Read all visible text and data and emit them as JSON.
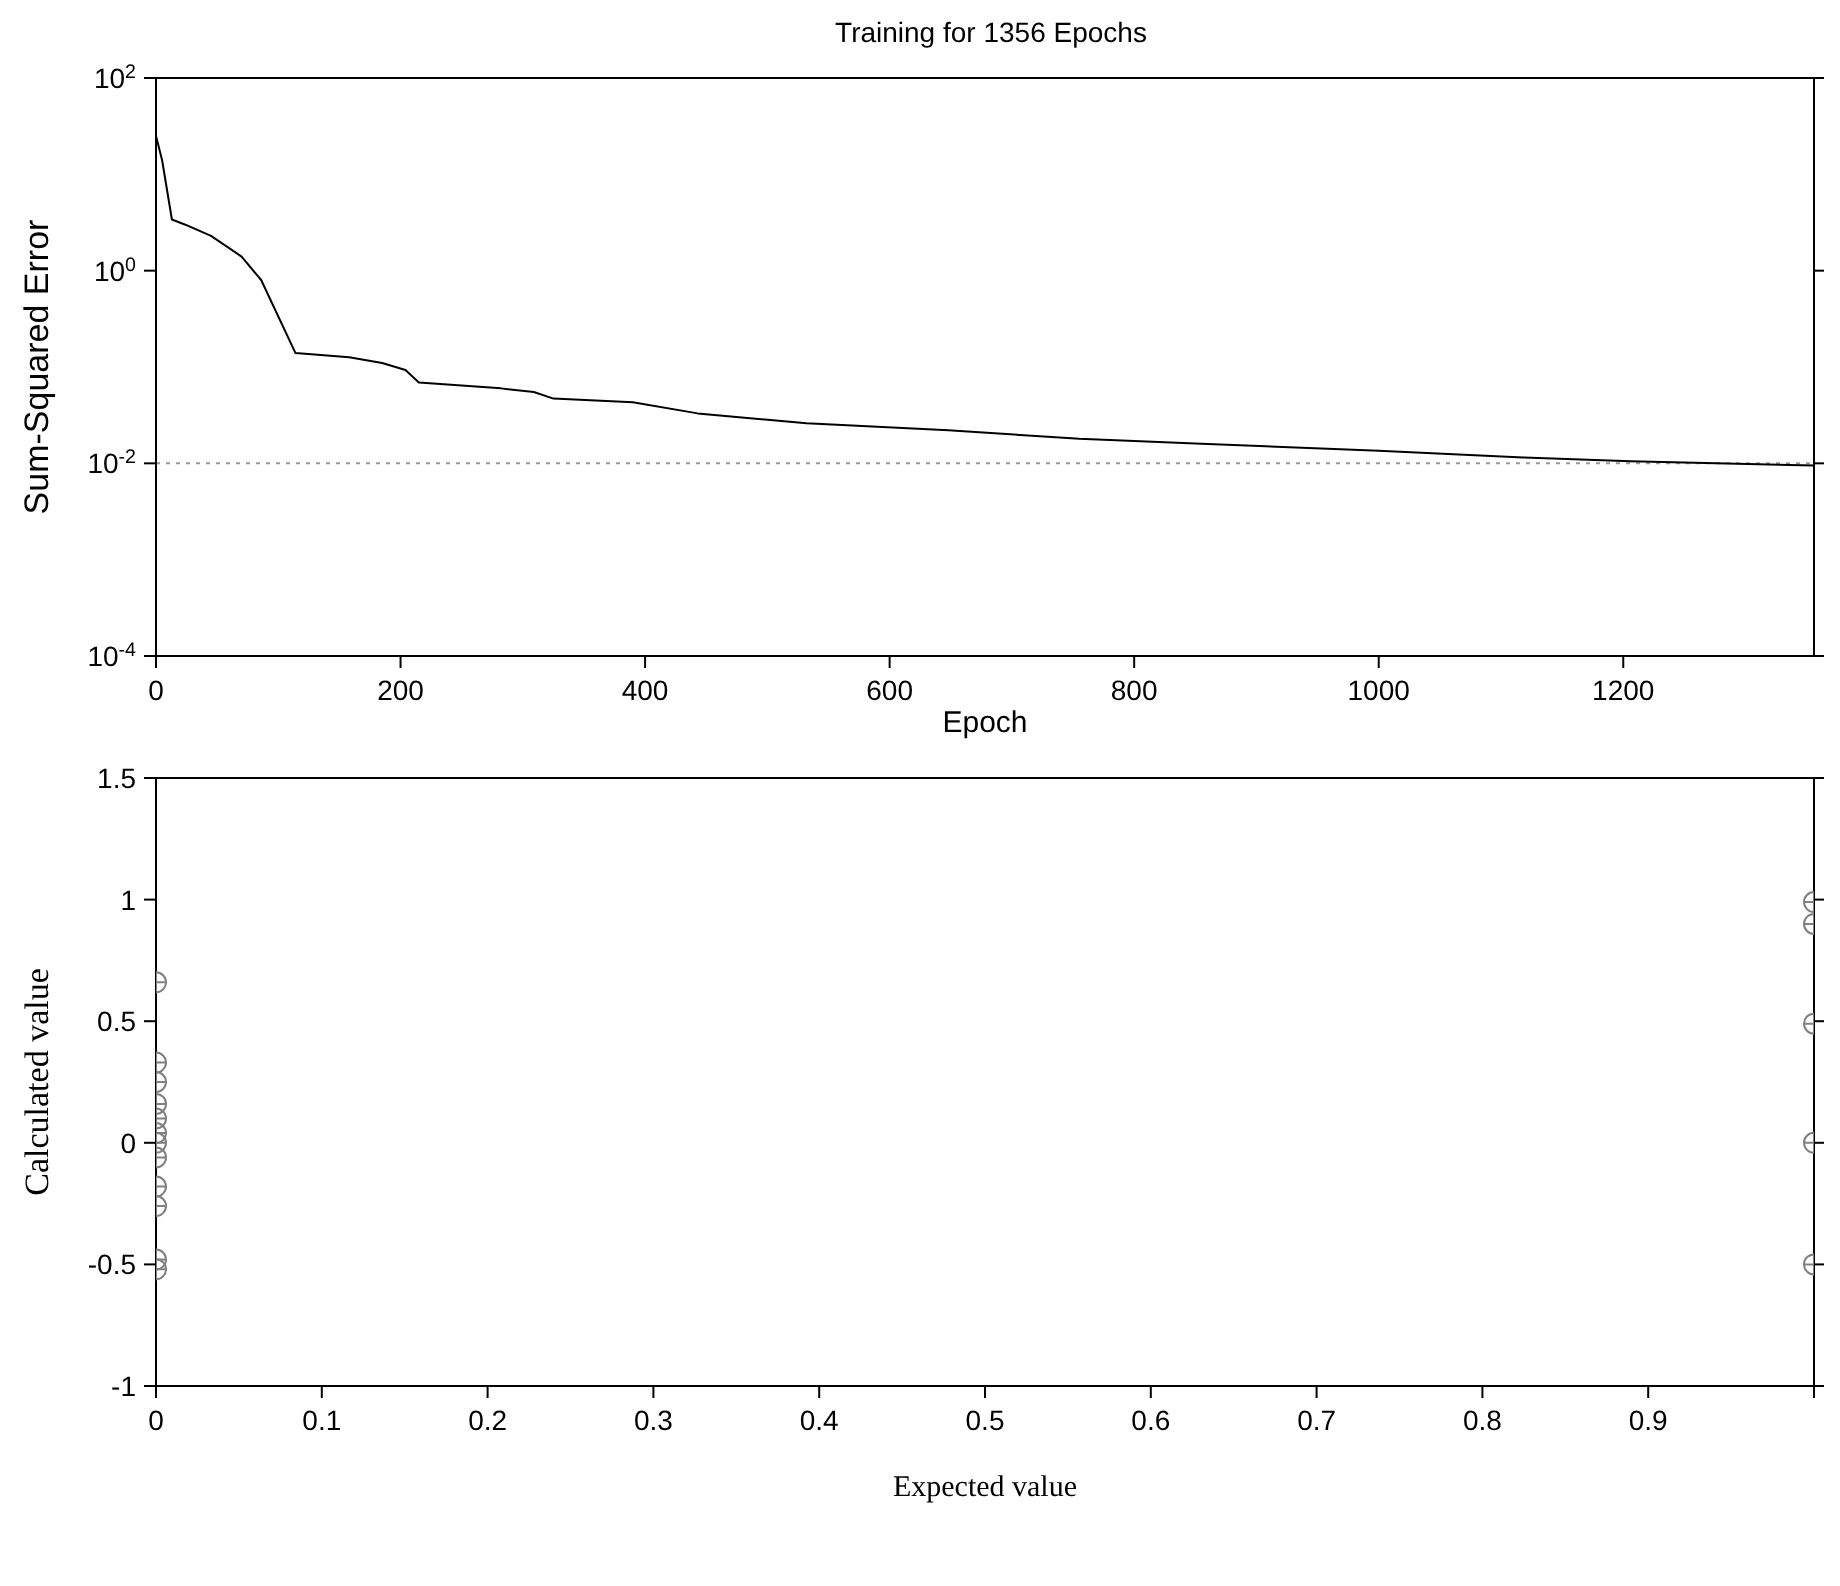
{
  "chart_data": [
    {
      "type": "line",
      "title": "Training for 1356 Epochs",
      "xlabel": "Epoch",
      "ylabel": "Sum-Squared Error",
      "log": "y",
      "grid": false,
      "x": [
        0,
        5,
        13,
        24,
        45,
        70,
        86,
        114,
        158,
        185,
        204,
        215,
        282,
        309,
        325,
        390,
        443,
        532,
        648,
        755,
        855,
        1000,
        1118,
        1206,
        1356
      ],
      "series": [
        {
          "color": "#000000",
          "values": [
            25,
            14,
            3.4,
            3.0,
            2.3,
            1.4,
            0.8,
            0.14,
            0.126,
            0.11,
            0.093,
            0.069,
            0.06,
            0.055,
            0.047,
            0.043,
            0.033,
            0.026,
            0.022,
            0.018,
            0.016,
            0.0135,
            0.0115,
            0.0105,
            0.0095
          ]
        }
      ],
      "xlim": [
        0,
        1356
      ],
      "xticks": [
        0,
        200,
        400,
        600,
        800,
        1000,
        1200
      ],
      "ylim": [
        0.0001,
        100
      ],
      "yticks": [
        {
          "value": 0.0001,
          "label": "10$^{-4}$"
        },
        {
          "value": 0.01,
          "label": "10$^{-2}$"
        },
        {
          "value": 1,
          "label": "10$^{0}$"
        },
        {
          "value": 100,
          "label": "10$^{2}$"
        }
      ],
      "ref_lines": [
        {
          "axis": "y",
          "value": 0.01,
          "color": "#999999",
          "line_style": "dotted"
        }
      ]
    },
    {
      "type": "scatter",
      "xlabel": "Expected value",
      "ylabel": "Calculated value",
      "grid": false,
      "marker": "circle",
      "x": [
        0,
        0,
        0,
        0,
        0,
        0,
        0,
        0,
        0,
        0,
        0,
        0,
        1,
        1,
        1,
        1,
        1
      ],
      "values": [
        0.66,
        0.33,
        0.25,
        0.16,
        0.1,
        0.04,
        0,
        -0.06,
        -0.18,
        -0.26,
        -0.48,
        -0.52,
        0.99,
        0.9,
        0.49,
        0,
        -0.5
      ],
      "color": "#808080",
      "xlim": [
        0,
        1
      ],
      "xticks": [
        0,
        0.1,
        0.2,
        0.3,
        0.4,
        0.5,
        0.6,
        0.7,
        0.8,
        0.9,
        {
          "value": 1,
          "label": null
        }
      ],
      "ylim": [
        -1,
        1.5
      ],
      "yticks": [
        -1,
        -0.5,
        0,
        0.5,
        1,
        1.5
      ]
    }
  ]
}
